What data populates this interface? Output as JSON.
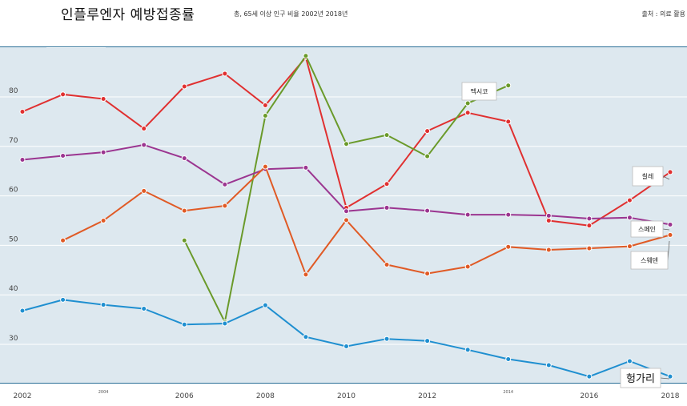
{
  "header": {
    "title": "인플루엔자 예방접종률",
    "subtitle": "총, 65세 이상 인구 비율 2002년 2018년",
    "source": "출처 : 의료 활용"
  },
  "colors": {
    "plot_background": "#dde8ef",
    "gridline": "#ffffff",
    "axis_line": "#2a6f97"
  },
  "chart_data": {
    "type": "line",
    "title": "인플루엔자 예방접종률",
    "subtitle": "총, 65세 이상 인구 비율 2002년 2018년",
    "xlim": [
      2002,
      2018
    ],
    "ylim": [
      23,
      92
    ],
    "grid": true,
    "x_ticks": [
      {
        "value": 2002,
        "label": "2002",
        "style": "normal"
      },
      {
        "value": 2004,
        "label": "2004",
        "style": "small"
      },
      {
        "value": 2006,
        "label": "2006",
        "style": "normal"
      },
      {
        "value": 2008,
        "label": "2008",
        "style": "normal"
      },
      {
        "value": 2010,
        "label": "2010",
        "style": "normal"
      },
      {
        "value": 2012,
        "label": "2012",
        "style": "normal"
      },
      {
        "value": 2014,
        "label": "2014",
        "style": "small"
      },
      {
        "value": 2016,
        "label": "2016",
        "style": "normal"
      },
      {
        "value": 2018,
        "label": "2018",
        "style": "normal"
      }
    ],
    "y_ticks": [
      30,
      40,
      50,
      60,
      70,
      80
    ],
    "series": [
      {
        "name": "칠레",
        "color": "#e03030",
        "x": [
          2002,
          2003,
          2004,
          2005,
          2006,
          2007,
          2008,
          2009,
          2010,
          2011,
          2012,
          2013,
          2014,
          2015,
          2016,
          2017,
          2018
        ],
        "y": [
          77.0,
          80.5,
          79.6,
          73.6,
          82.1,
          84.7,
          78.3,
          88.0,
          57.6,
          62.4,
          73.1,
          76.8,
          75.0,
          55.0,
          54.0,
          59.1,
          64.8
        ]
      },
      {
        "name": "멕시코",
        "color": "#6a9a2a",
        "x": [
          2006,
          2007,
          2008,
          2009,
          2010,
          2011,
          2012,
          2013,
          2014
        ],
        "y": [
          51.0,
          34.5,
          76.2,
          88.3,
          70.5,
          72.3,
          68.0,
          78.7,
          82.3
        ]
      },
      {
        "name": "스페인",
        "color": "#9b3590",
        "x": [
          2002,
          2003,
          2004,
          2005,
          2006,
          2007,
          2008,
          2009,
          2010,
          2011,
          2012,
          2013,
          2014,
          2015,
          2016,
          2017,
          2018
        ],
        "y": [
          67.3,
          68.1,
          68.8,
          70.3,
          67.6,
          62.3,
          65.4,
          65.7,
          56.9,
          57.6,
          57.0,
          56.2,
          56.2,
          56.0,
          55.4,
          55.6,
          54.2
        ]
      },
      {
        "name": "스웨덴",
        "color": "#e05a25",
        "x": [
          2003,
          2004,
          2005,
          2006,
          2007,
          2008,
          2009,
          2010,
          2011,
          2012,
          2013,
          2014,
          2015,
          2016,
          2017,
          2018
        ],
        "y": [
          51.0,
          55.0,
          61.0,
          57.0,
          58.0,
          65.9,
          44.1,
          55.1,
          46.1,
          44.3,
          45.7,
          49.7,
          49.1,
          49.4,
          49.8,
          52.1
        ]
      },
      {
        "name": "헝가리",
        "color": "#1f8fd0",
        "x": [
          2002,
          2003,
          2004,
          2005,
          2006,
          2007,
          2008,
          2009,
          2010,
          2011,
          2012,
          2013,
          2014,
          2015,
          2016,
          2017,
          2018
        ],
        "y": [
          36.8,
          39.0,
          38.0,
          37.2,
          34.0,
          34.2,
          37.9,
          31.5,
          29.6,
          31.1,
          30.7,
          28.9,
          27.0,
          25.8,
          23.5,
          26.6,
          23.5
        ]
      }
    ],
    "annotations": [
      {
        "series": "칠레",
        "text": "칠레",
        "style": "normal"
      },
      {
        "series": "멕시코",
        "text": "멕시코",
        "style": "normal"
      },
      {
        "series": "스페인",
        "text": "스페인",
        "style": "normal"
      },
      {
        "series": "스웨덴",
        "text": "스웨덴",
        "style": "normal"
      },
      {
        "series": "헝가리",
        "text": "헝가리",
        "style": "big"
      }
    ]
  }
}
